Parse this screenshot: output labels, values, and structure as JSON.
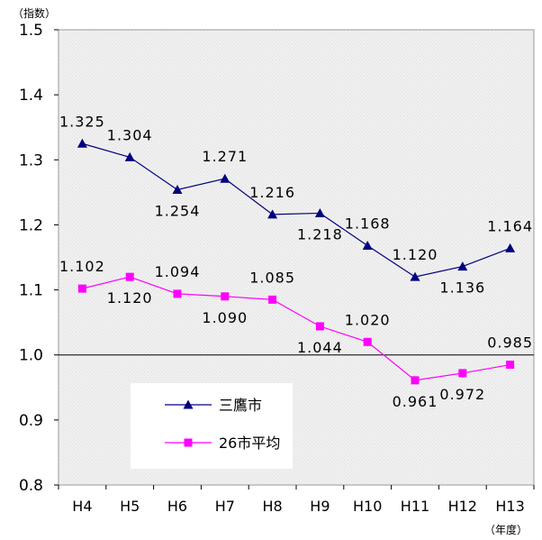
{
  "chart_data": {
    "type": "line",
    "ylabel_unit": "（指数）",
    "xlabel_unit": "（年度）",
    "categories": [
      "H4",
      "H5",
      "H6",
      "H7",
      "H8",
      "H9",
      "H10",
      "H11",
      "H12",
      "H13"
    ],
    "ylim": [
      0.8,
      1.5
    ],
    "yticks": [
      "0.8",
      "0.9",
      "1.0",
      "1.1",
      "1.2",
      "1.3",
      "1.4",
      "1.5"
    ],
    "reference_line": 1.0,
    "grid": false,
    "legend_position": "lower-left, inside plot",
    "series": [
      {
        "name": "三鷹市",
        "color": "#000080",
        "marker": "triangle",
        "values": [
          1.325,
          1.304,
          1.254,
          1.271,
          1.216,
          1.218,
          1.168,
          1.12,
          1.136,
          1.164
        ],
        "labels": [
          "1.325",
          "1.304",
          "1.254",
          "1.271",
          "1.216",
          "1.218",
          "1.168",
          "1.120",
          "1.136",
          "1.164"
        ]
      },
      {
        "name": "26市平均",
        "color": "#ff00ff",
        "marker": "square",
        "values": [
          1.102,
          1.12,
          1.094,
          1.09,
          1.085,
          1.044,
          1.02,
          0.961,
          0.972,
          0.985
        ],
        "labels": [
          "1.102",
          "1.120",
          "1.094",
          "1.090",
          "1.085",
          "1.044",
          "1.020",
          "0.961",
          "0.972",
          "0.985"
        ]
      }
    ]
  }
}
